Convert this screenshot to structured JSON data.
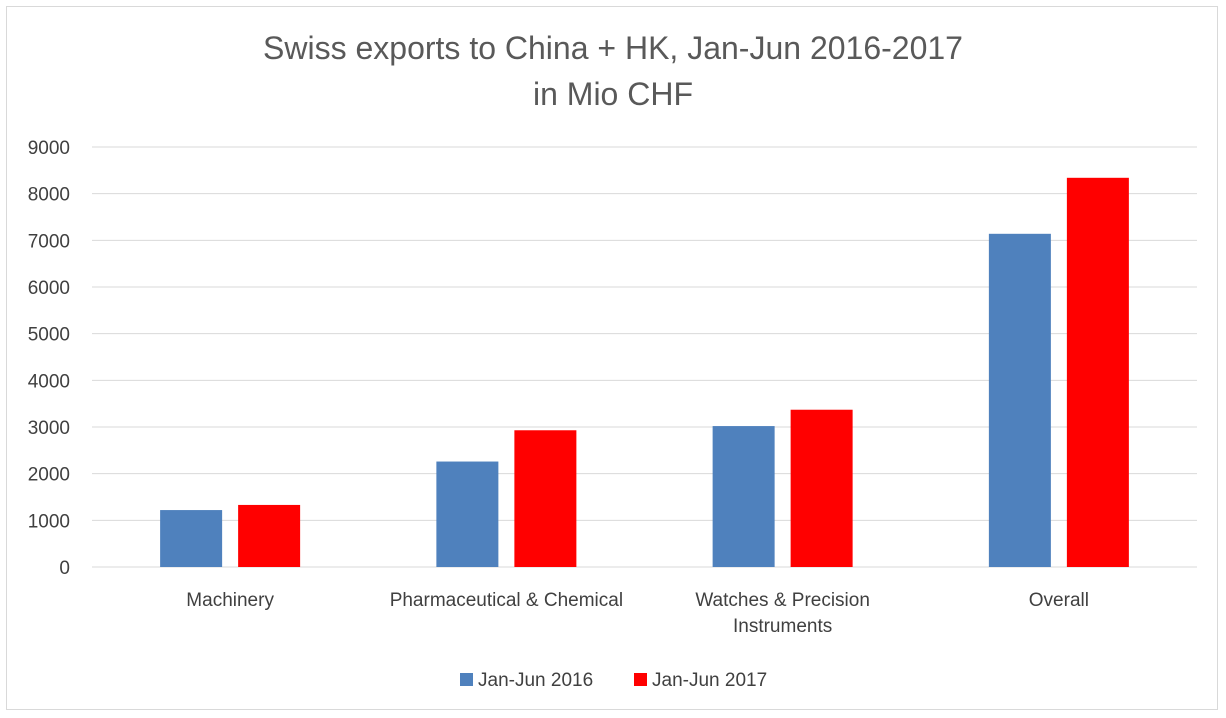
{
  "chart_data": {
    "type": "bar",
    "title": "Swiss exports to China + HK, Jan-Jun 2016-2017",
    "subtitle": "in Mio CHF",
    "categories": [
      [
        "Machinery"
      ],
      [
        "Pharmaceutical & Chemical"
      ],
      [
        "Watches & Precision",
        "Instruments"
      ],
      [
        "Overall"
      ]
    ],
    "series": [
      {
        "name": "Jan-Jun 2016",
        "color": "#4f81bd",
        "values": [
          1220,
          2260,
          3020,
          7140
        ]
      },
      {
        "name": "Jan-Jun 2017",
        "color": "#ff0000",
        "values": [
          1330,
          2930,
          3370,
          8340
        ]
      }
    ],
    "ylim": [
      0,
      9000
    ],
    "yticks": [
      "0",
      "1000",
      "2000",
      "3000",
      "4000",
      "5000",
      "6000",
      "7000",
      "8000",
      "9000"
    ],
    "grid": true,
    "legend": "bottom"
  }
}
